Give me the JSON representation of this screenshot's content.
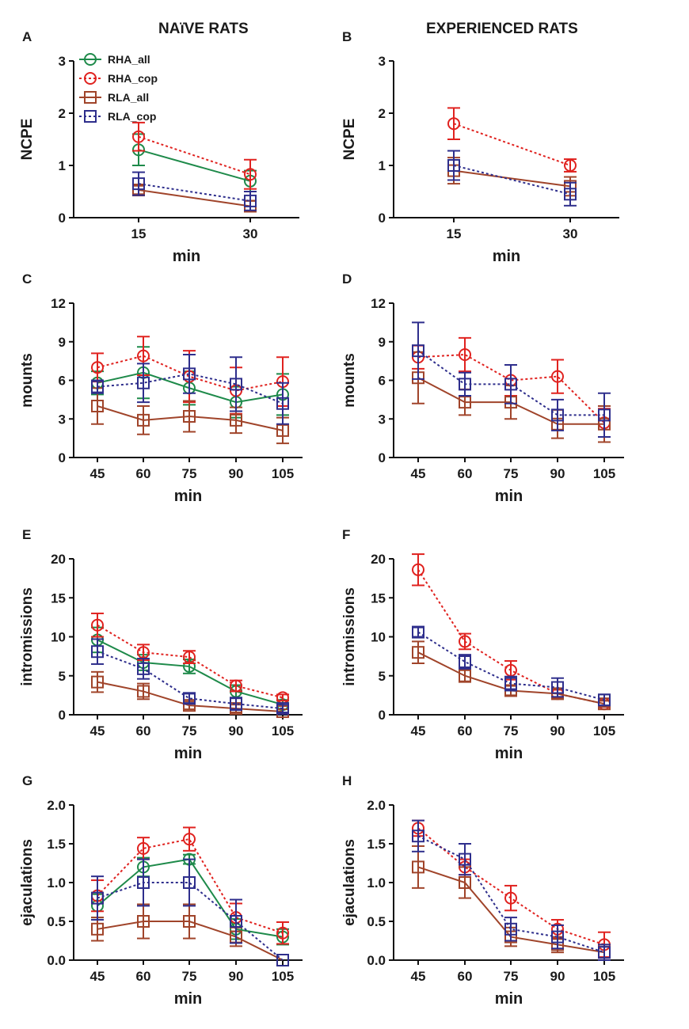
{
  "column_titles": {
    "left": "NAïVE RATS",
    "right": "EXPERIENCED RATS"
  },
  "legend": [
    {
      "name": "RHA_all",
      "color": "#1e8a4a",
      "marker": "circle",
      "dash": "solid"
    },
    {
      "name": "RHA_cop",
      "color": "#e0221f",
      "marker": "circle",
      "dash": "dotted"
    },
    {
      "name": "RLA_all",
      "color": "#a0442a",
      "marker": "square",
      "dash": "solid"
    },
    {
      "name": "RLA_cop",
      "color": "#2e2e8c",
      "marker": "square",
      "dash": "dotted"
    }
  ],
  "chart_data": [
    {
      "panel": "A",
      "type": "line",
      "xlabel": "min",
      "ylabel": "NCPE",
      "categories": [
        "15",
        "30"
      ],
      "ylim": [
        0,
        3
      ],
      "yticks": [
        "0",
        "1",
        "2",
        "3"
      ],
      "series": [
        {
          "name": "RHA_all",
          "values": [
            1.3,
            0.7
          ],
          "errors": [
            0.3,
            0.2
          ]
        },
        {
          "name": "RHA_cop",
          "values": [
            1.55,
            0.83
          ],
          "errors": [
            0.27,
            0.28
          ]
        },
        {
          "name": "RLA_all",
          "values": [
            0.53,
            0.22
          ],
          "errors": [
            0.08,
            0.1
          ]
        },
        {
          "name": "RLA_cop",
          "values": [
            0.65,
            0.32
          ],
          "errors": [
            0.22,
            0.18
          ]
        }
      ]
    },
    {
      "panel": "B",
      "type": "line",
      "xlabel": "min",
      "ylabel": "NCPE",
      "categories": [
        "15",
        "30"
      ],
      "ylim": [
        0,
        3
      ],
      "yticks": [
        "0",
        "1",
        "2",
        "3"
      ],
      "series": [
        {
          "name": "RHA_cop",
          "values": [
            1.8,
            1.0
          ],
          "errors": [
            0.3,
            0.12
          ]
        },
        {
          "name": "RLA_all",
          "values": [
            0.9,
            0.6
          ],
          "errors": [
            0.25,
            0.18
          ]
        },
        {
          "name": "RLA_cop",
          "values": [
            1.0,
            0.45
          ],
          "errors": [
            0.28,
            0.22
          ]
        }
      ]
    },
    {
      "panel": "C",
      "type": "line",
      "xlabel": "min",
      "ylabel": "mounts",
      "categories": [
        "45",
        "60",
        "75",
        "90",
        "105"
      ],
      "ylim": [
        0,
        12
      ],
      "yticks": [
        "0",
        "3",
        "6",
        "9",
        "12"
      ],
      "series": [
        {
          "name": "RHA_all",
          "values": [
            5.8,
            6.6,
            5.4,
            4.3,
            4.9
          ],
          "errors": [
            0.9,
            2.0,
            1.3,
            1.2,
            1.6
          ]
        },
        {
          "name": "RHA_cop",
          "values": [
            7.0,
            7.9,
            6.3,
            5.2,
            5.9
          ],
          "errors": [
            1.1,
            1.5,
            2.0,
            1.8,
            1.9
          ]
        },
        {
          "name": "RLA_all",
          "values": [
            4.0,
            2.9,
            3.2,
            2.9,
            2.1
          ],
          "errors": [
            1.4,
            1.1,
            1.2,
            1.0,
            1.0
          ]
        },
        {
          "name": "RLA_cop",
          "values": [
            5.5,
            5.8,
            6.5,
            5.7,
            4.2
          ],
          "errors": [
            0.5,
            1.5,
            1.5,
            2.1,
            1.6
          ]
        }
      ]
    },
    {
      "panel": "D",
      "type": "line",
      "xlabel": "min",
      "ylabel": "mounts",
      "categories": [
        "45",
        "60",
        "75",
        "90",
        "105"
      ],
      "ylim": [
        0,
        12
      ],
      "yticks": [
        "0",
        "3",
        "6",
        "9",
        "12"
      ],
      "series": [
        {
          "name": "RHA_cop",
          "values": [
            7.8,
            8.0,
            6.0,
            6.3,
            2.7
          ],
          "errors": [
            0.9,
            1.3,
            1.2,
            1.3,
            1.1
          ]
        },
        {
          "name": "RLA_all",
          "values": [
            6.2,
            4.3,
            4.3,
            2.6,
            2.6
          ],
          "errors": [
            2.0,
            1.0,
            1.3,
            1.1,
            1.4
          ]
        },
        {
          "name": "RLA_cop",
          "values": [
            8.3,
            5.7,
            5.7,
            3.3,
            3.3
          ],
          "errors": [
            2.2,
            0.9,
            1.5,
            1.2,
            1.7
          ]
        }
      ]
    },
    {
      "panel": "E",
      "type": "line",
      "xlabel": "min",
      "ylabel": "intromissions",
      "categories": [
        "45",
        "60",
        "75",
        "90",
        "105"
      ],
      "ylim": [
        0,
        20
      ],
      "yticks": [
        "0",
        "5",
        "10",
        "15",
        "20"
      ],
      "series": [
        {
          "name": "RHA_all",
          "values": [
            9.6,
            6.7,
            6.2,
            3.0,
            1.3
          ],
          "errors": [
            1.6,
            1.0,
            0.9,
            0.8,
            0.6
          ]
        },
        {
          "name": "RHA_cop",
          "values": [
            11.5,
            8.0,
            7.4,
            3.7,
            2.2
          ],
          "errors": [
            1.5,
            1.0,
            0.8,
            0.7,
            0.4
          ]
        },
        {
          "name": "RLA_all",
          "values": [
            4.2,
            3.0,
            1.2,
            0.8,
            0.4
          ],
          "errors": [
            1.3,
            1.0,
            0.5,
            0.5,
            0.3
          ]
        },
        {
          "name": "RLA_cop",
          "values": [
            8.1,
            5.9,
            2.1,
            1.4,
            0.8
          ],
          "errors": [
            1.6,
            1.3,
            0.6,
            0.8,
            0.5
          ]
        }
      ]
    },
    {
      "panel": "F",
      "type": "line",
      "xlabel": "min",
      "ylabel": "intromissions",
      "categories": [
        "45",
        "60",
        "75",
        "90",
        "105"
      ],
      "ylim": [
        0,
        20
      ],
      "yticks": [
        "0",
        "5",
        "10",
        "15",
        "20"
      ],
      "series": [
        {
          "name": "RHA_cop",
          "values": [
            18.6,
            9.4,
            5.7,
            2.7,
            1.4
          ],
          "errors": [
            2.0,
            1.0,
            1.2,
            0.5,
            0.4
          ]
        },
        {
          "name": "RLA_all",
          "values": [
            8.0,
            5.0,
            3.1,
            2.7,
            1.4
          ],
          "errors": [
            1.4,
            0.8,
            0.6,
            0.6,
            0.4
          ]
        },
        {
          "name": "RLA_cop",
          "values": [
            10.6,
            6.8,
            4.0,
            3.5,
            1.9
          ],
          "errors": [
            0.6,
            0.9,
            0.9,
            1.2,
            0.7
          ]
        }
      ]
    },
    {
      "panel": "G",
      "type": "line",
      "xlabel": "min",
      "ylabel": "ejaculations",
      "categories": [
        "45",
        "60",
        "75",
        "90",
        "105"
      ],
      "ylim": [
        0,
        2.0
      ],
      "yticks": [
        "0.0",
        "0.5",
        "1.0",
        "1.5",
        "2.0"
      ],
      "series": [
        {
          "name": "RHA_all",
          "values": [
            0.7,
            1.2,
            1.3,
            0.4,
            0.3
          ],
          "errors": [
            0.15,
            0.12,
            0.06,
            0.13,
            0.1
          ]
        },
        {
          "name": "RHA_cop",
          "values": [
            0.83,
            1.44,
            1.56,
            0.55,
            0.35
          ],
          "errors": [
            0.2,
            0.14,
            0.15,
            0.18,
            0.14
          ]
        },
        {
          "name": "RLA_all",
          "values": [
            0.4,
            0.5,
            0.5,
            0.3,
            0.0
          ],
          "errors": [
            0.15,
            0.22,
            0.22,
            0.12,
            0.0
          ]
        },
        {
          "name": "RLA_cop",
          "values": [
            0.8,
            1.0,
            1.0,
            0.5,
            0.0
          ],
          "errors": [
            0.28,
            0.3,
            0.3,
            0.28,
            0.0
          ]
        }
      ]
    },
    {
      "panel": "H",
      "type": "line",
      "xlabel": "min",
      "ylabel": "ejaculations",
      "categories": [
        "45",
        "60",
        "75",
        "90",
        "105"
      ],
      "ylim": [
        0,
        2.0
      ],
      "yticks": [
        "0.0",
        "0.5",
        "1.0",
        "1.5",
        "2.0"
      ],
      "series": [
        {
          "name": "RHA_cop",
          "values": [
            1.7,
            1.2,
            0.8,
            0.4,
            0.2
          ],
          "errors": [
            0.1,
            0.1,
            0.16,
            0.12,
            0.16
          ]
        },
        {
          "name": "RLA_all",
          "values": [
            1.2,
            1.0,
            0.3,
            0.2,
            0.1
          ],
          "errors": [
            0.27,
            0.2,
            0.12,
            0.1,
            0.1
          ]
        },
        {
          "name": "RLA_cop",
          "values": [
            1.6,
            1.3,
            0.4,
            0.3,
            0.1
          ],
          "errors": [
            0.2,
            0.2,
            0.15,
            0.15,
            0.1
          ]
        }
      ]
    }
  ]
}
